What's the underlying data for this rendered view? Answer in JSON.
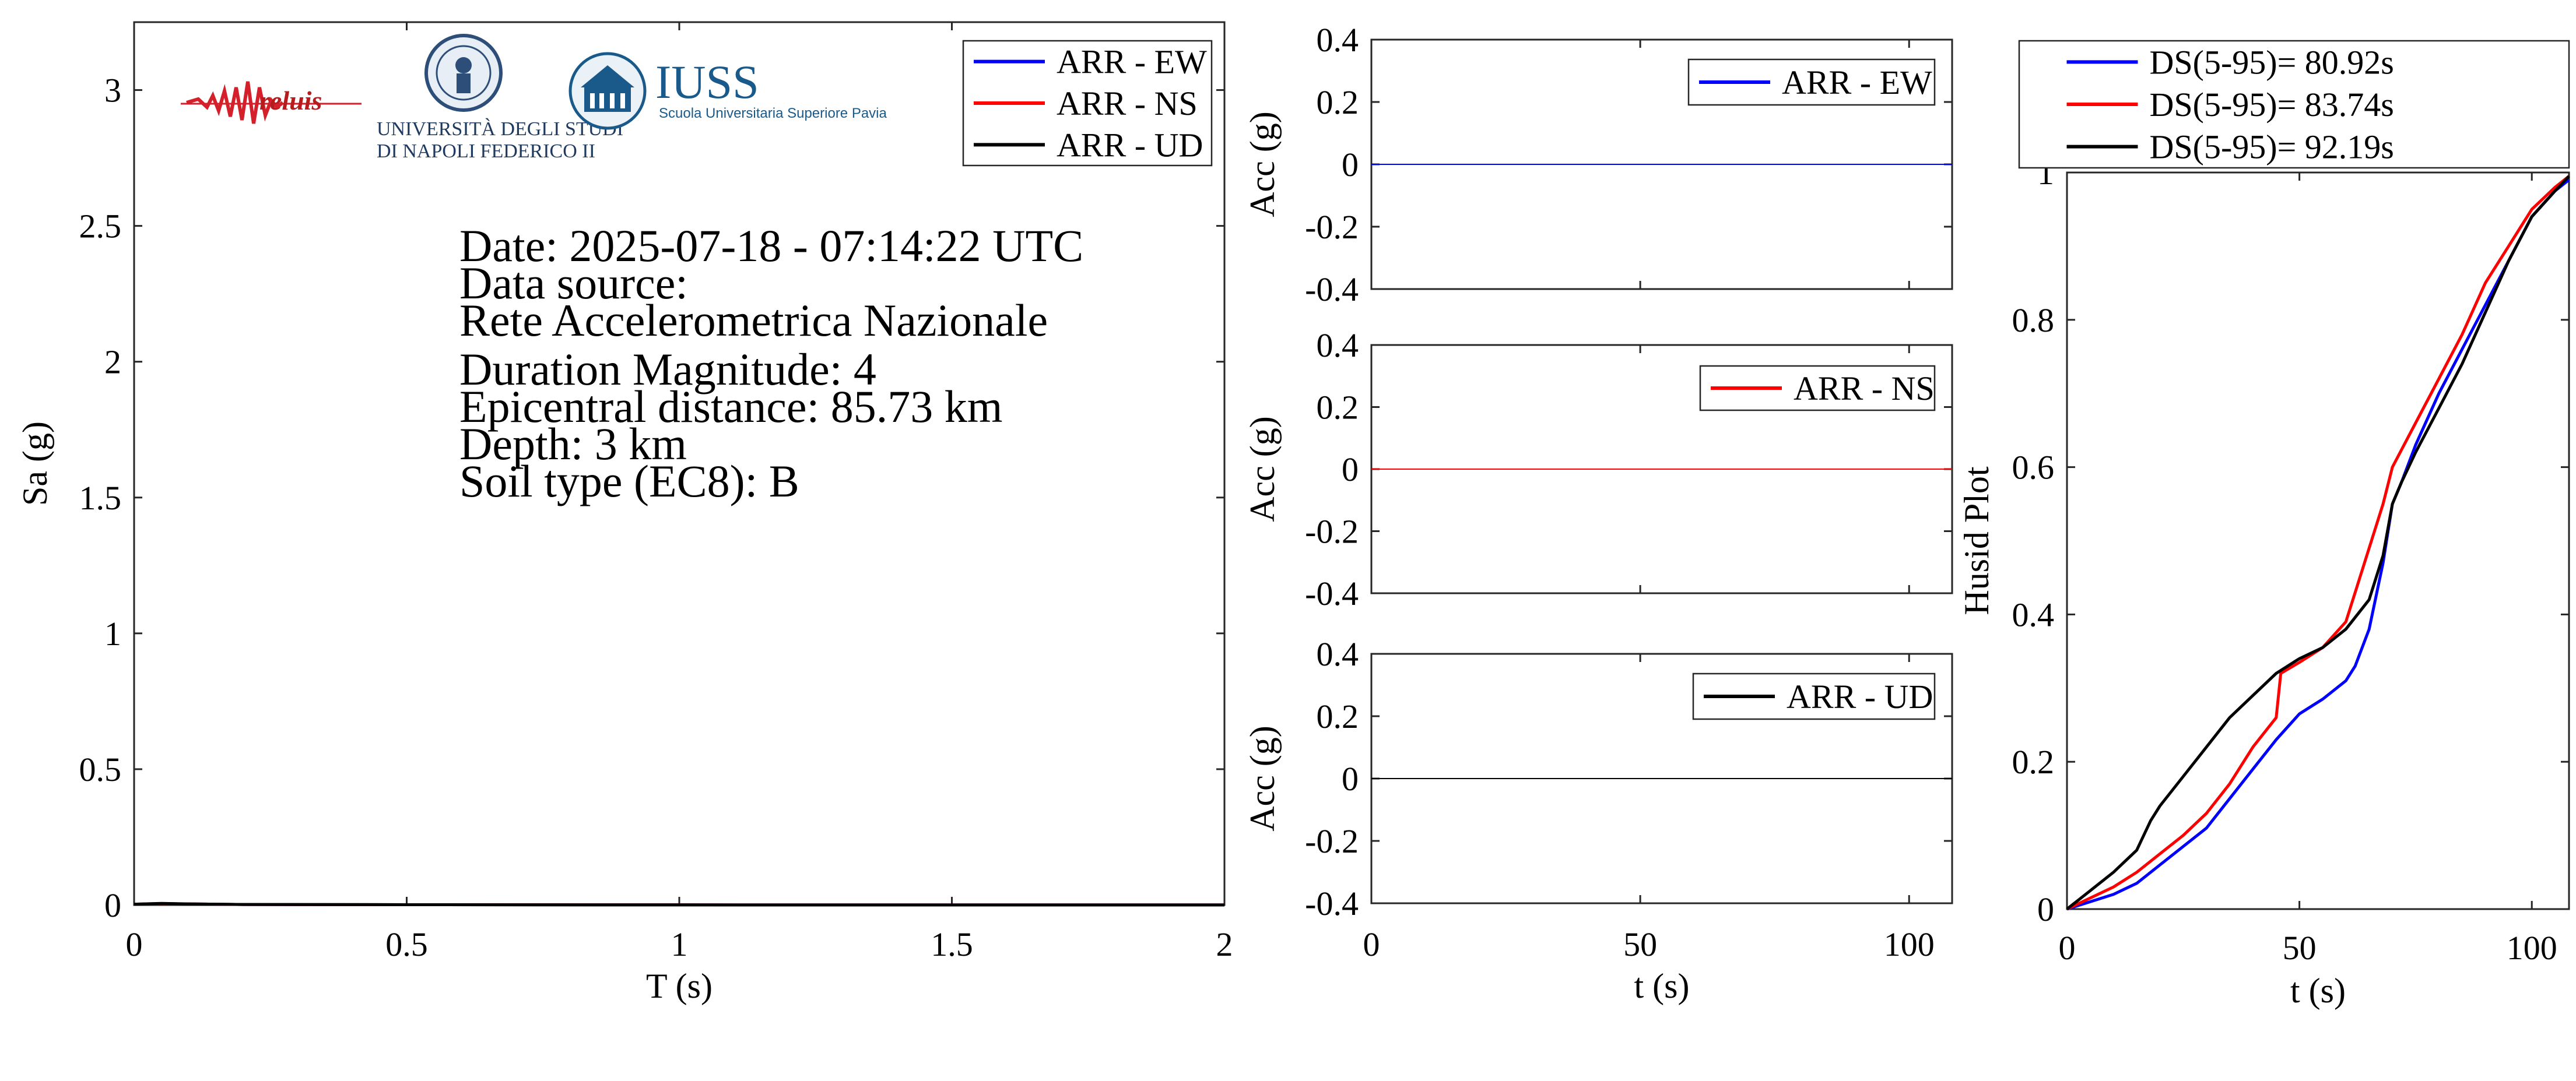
{
  "colors": {
    "ew": "#0000ff",
    "ns": "#ff0000",
    "ud": "#000000"
  },
  "info": {
    "lines": [
      "Date: 2025-07-18 - 07:14:22 UTC",
      "Data source:",
      "Rete Accelerometrica Nazionale",
      "Duration Magnitude: 4",
      "Epicentral distance: 85.73 km",
      "Depth: 3 km",
      "Soil type (EC8): B"
    ]
  },
  "logos": {
    "reluis": "reluis",
    "unina_line1": "UNIVERSITÀ DEGLI STUDI",
    "unina_line2": "DI NAPOLI FEDERICO II",
    "iuss": "IUSS",
    "iuss_sub": "Scuola Universitaria Superiore Pavia"
  },
  "chart_data": [
    {
      "type": "line",
      "id": "spectrum",
      "xlabel": "T (s)",
      "ylabel": "Sa (g)",
      "xlim": [
        0,
        2
      ],
      "ylim": [
        0,
        3.25
      ],
      "xticks": [
        0,
        0.5,
        1,
        1.5,
        2
      ],
      "xtick_labels": [
        "0",
        "0.5",
        "1",
        "1.5",
        "2"
      ],
      "yticks": [
        0,
        0.5,
        1,
        1.5,
        2,
        2.5,
        3
      ],
      "ytick_labels": [
        "0",
        "0.5",
        "1",
        "1.5",
        "2",
        "2.5",
        "3"
      ],
      "legend": "top-right",
      "series": [
        {
          "name": "ARR - EW",
          "color_key": "ew",
          "x": [
            0,
            0.05,
            0.1,
            0.2,
            0.5,
            1,
            1.5,
            2
          ],
          "y": [
            0.003,
            0.005,
            0.004,
            0.002,
            0.001,
            0.0005,
            0.0003,
            0.0002
          ]
        },
        {
          "name": "ARR - NS",
          "color_key": "ns",
          "x": [
            0,
            0.05,
            0.1,
            0.2,
            0.5,
            1,
            1.5,
            2
          ],
          "y": [
            0.003,
            0.005,
            0.004,
            0.002,
            0.001,
            0.0005,
            0.0003,
            0.0002
          ]
        },
        {
          "name": "ARR - UD",
          "color_key": "ud",
          "x": [
            0,
            0.05,
            0.1,
            0.2,
            0.5,
            1,
            1.5,
            2
          ],
          "y": [
            0.003,
            0.006,
            0.004,
            0.002,
            0.001,
            0.0005,
            0.0003,
            0.0002
          ]
        }
      ]
    },
    {
      "type": "line",
      "id": "acc-ew",
      "xlabel": "",
      "ylabel": "Acc (g)",
      "xlim": [
        0,
        108
      ],
      "ylim": [
        -0.4,
        0.4
      ],
      "yticks": [
        -0.4,
        -0.2,
        0,
        0.2,
        0.4
      ],
      "ytick_labels": [
        "-0.4",
        "-0.2",
        "0",
        "0.2",
        "0.4"
      ],
      "legend": "top-right",
      "series": [
        {
          "name": "ARR - EW",
          "color_key": "ew",
          "x": [
            0,
            108
          ],
          "y": [
            0,
            0
          ]
        }
      ]
    },
    {
      "type": "line",
      "id": "acc-ns",
      "xlabel": "",
      "ylabel": "Acc (g)",
      "xlim": [
        0,
        108
      ],
      "ylim": [
        -0.4,
        0.4
      ],
      "yticks": [
        -0.4,
        -0.2,
        0,
        0.2,
        0.4
      ],
      "ytick_labels": [
        "-0.4",
        "-0.2",
        "0",
        "0.2",
        "0.4"
      ],
      "legend": "top-right",
      "series": [
        {
          "name": "ARR - NS",
          "color_key": "ns",
          "x": [
            0,
            108
          ],
          "y": [
            0,
            0
          ]
        }
      ]
    },
    {
      "type": "line",
      "id": "acc-ud",
      "xlabel": "t (s)",
      "ylabel": "Acc (g)",
      "xlim": [
        0,
        108
      ],
      "ylim": [
        -0.4,
        0.4
      ],
      "xticks": [
        0,
        50,
        100
      ],
      "xtick_labels": [
        "0",
        "50",
        "100"
      ],
      "yticks": [
        -0.4,
        -0.2,
        0,
        0.2,
        0.4
      ],
      "ytick_labels": [
        "-0.4",
        "-0.2",
        "0",
        "0.2",
        "0.4"
      ],
      "legend": "top-right",
      "series": [
        {
          "name": "ARR - UD",
          "color_key": "ud",
          "x": [
            0,
            108
          ],
          "y": [
            0,
            0
          ]
        }
      ]
    },
    {
      "type": "line",
      "id": "husid",
      "xlabel": "t (s)",
      "ylabel": "Husid Plot",
      "xlim": [
        0,
        108
      ],
      "ylim": [
        0,
        1
      ],
      "xticks": [
        0,
        50,
        100
      ],
      "xtick_labels": [
        "0",
        "50",
        "100"
      ],
      "yticks": [
        0,
        0.2,
        0.4,
        0.6,
        0.8,
        1
      ],
      "ytick_labels": [
        "0",
        "0.2",
        "0.4",
        "0.6",
        "0.8",
        "1"
      ],
      "legend": "top-outside",
      "series": [
        {
          "name": "DS(5-95)= 80.92s",
          "color_key": "ew",
          "x": [
            0,
            5,
            10,
            15,
            20,
            25,
            30,
            35,
            40,
            45,
            50,
            55,
            60,
            62,
            65,
            68,
            70,
            72,
            75,
            80,
            85,
            90,
            95,
            100,
            105,
            108
          ],
          "y": [
            0,
            0.01,
            0.02,
            0.035,
            0.06,
            0.085,
            0.11,
            0.15,
            0.19,
            0.23,
            0.265,
            0.285,
            0.31,
            0.33,
            0.38,
            0.47,
            0.55,
            0.58,
            0.63,
            0.7,
            0.76,
            0.82,
            0.88,
            0.94,
            0.975,
            0.99
          ]
        },
        {
          "name": "DS(5-95)= 83.74s",
          "color_key": "ns",
          "x": [
            0,
            5,
            10,
            15,
            20,
            25,
            30,
            35,
            40,
            45,
            46,
            50,
            55,
            60,
            62,
            65,
            68,
            70,
            75,
            80,
            85,
            90,
            95,
            100,
            105,
            108
          ],
          "y": [
            0,
            0.015,
            0.03,
            0.05,
            0.075,
            0.1,
            0.13,
            0.17,
            0.22,
            0.26,
            0.32,
            0.335,
            0.355,
            0.39,
            0.43,
            0.49,
            0.55,
            0.6,
            0.66,
            0.72,
            0.78,
            0.85,
            0.9,
            0.95,
            0.98,
            0.995
          ]
        },
        {
          "name": "DS(5-95)= 92.19s",
          "color_key": "ud",
          "x": [
            0,
            5,
            10,
            15,
            18,
            20,
            25,
            30,
            35,
            40,
            45,
            50,
            55,
            60,
            65,
            68,
            70,
            72,
            75,
            80,
            85,
            90,
            95,
            100,
            105,
            108
          ],
          "y": [
            0,
            0.025,
            0.05,
            0.08,
            0.12,
            0.14,
            0.18,
            0.22,
            0.26,
            0.29,
            0.32,
            0.34,
            0.355,
            0.38,
            0.42,
            0.48,
            0.55,
            0.58,
            0.62,
            0.68,
            0.74,
            0.81,
            0.88,
            0.94,
            0.975,
            0.995
          ]
        }
      ]
    }
  ]
}
